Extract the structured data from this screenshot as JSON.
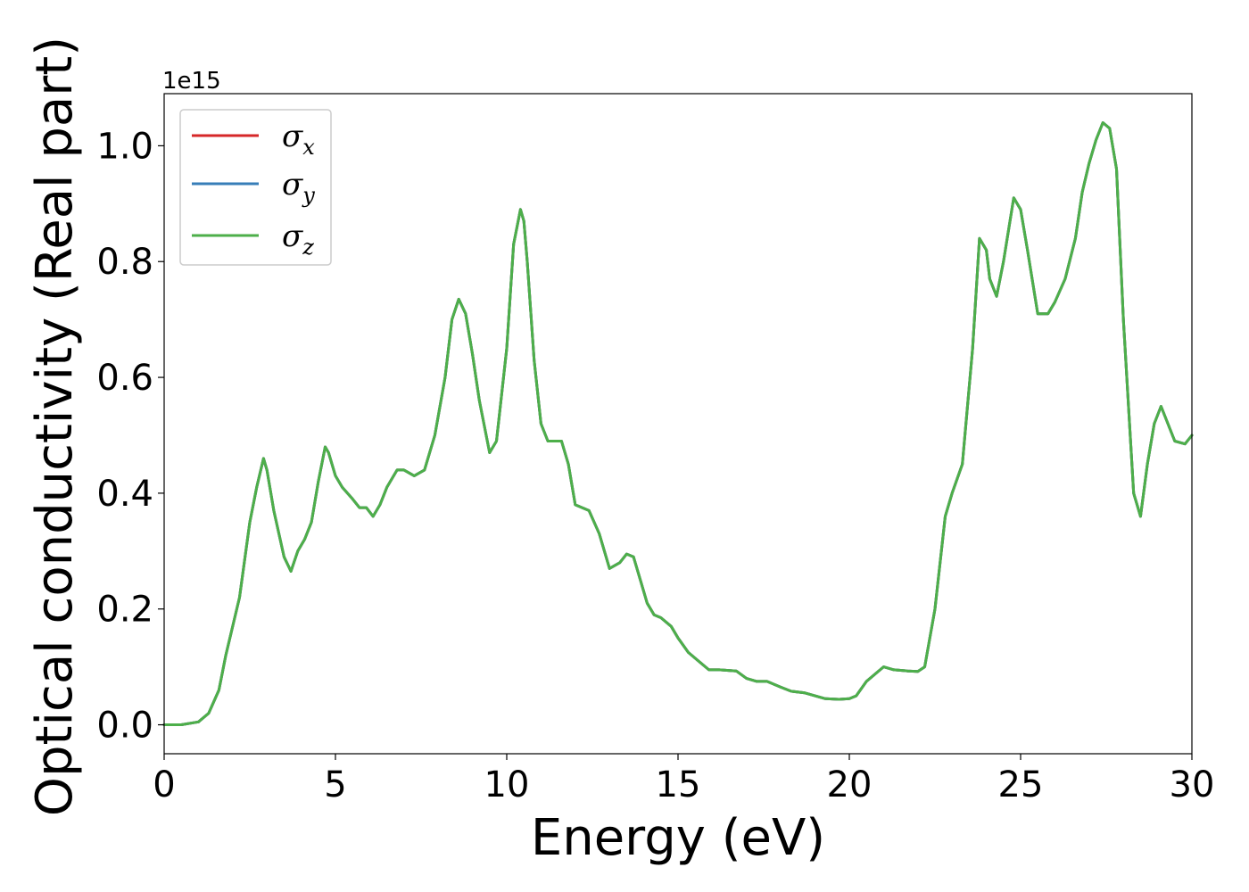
{
  "chart_data": {
    "type": "line",
    "xlabel": "Energy (eV)",
    "ylabel": "Optical conductivity (Real part)",
    "offset_text": "1e15",
    "xlim": [
      0,
      30
    ],
    "ylim": [
      -0.05,
      1.09
    ],
    "xticks": [
      0,
      5,
      10,
      15,
      20,
      25,
      30
    ],
    "yticks": [
      0.0,
      0.2,
      0.4,
      0.6,
      0.8,
      1.0
    ],
    "xtick_labels": [
      "0",
      "5",
      "10",
      "15",
      "20",
      "25",
      "30"
    ],
    "ytick_labels": [
      "0.0",
      "0.2",
      "0.4",
      "0.6",
      "0.8",
      "1.0"
    ],
    "grid": false,
    "legend_position": "top-left",
    "legend": [
      {
        "symbol": "σ",
        "sub": "x",
        "color": "#d62728"
      },
      {
        "symbol": "σ",
        "sub": "y",
        "color": "#377eb8"
      },
      {
        "symbol": "σ",
        "sub": "z",
        "color": "#4daf4a"
      }
    ],
    "series": [
      {
        "name": "σx",
        "color": "#d62728"
      },
      {
        "name": "σy",
        "color": "#377eb8"
      },
      {
        "name": "σz",
        "color": "#4daf4a"
      }
    ],
    "x": [
      0,
      0.5,
      1.0,
      1.3,
      1.6,
      1.8,
      2.0,
      2.2,
      2.5,
      2.7,
      2.9,
      3.0,
      3.2,
      3.5,
      3.7,
      3.9,
      4.1,
      4.3,
      4.5,
      4.7,
      4.8,
      5.0,
      5.2,
      5.5,
      5.7,
      5.9,
      6.1,
      6.3,
      6.5,
      6.8,
      7.0,
      7.3,
      7.6,
      7.9,
      8.2,
      8.4,
      8.6,
      8.8,
      9.0,
      9.2,
      9.5,
      9.7,
      10.0,
      10.2,
      10.4,
      10.5,
      10.6,
      10.8,
      11.0,
      11.2,
      11.4,
      11.6,
      11.8,
      12.0,
      12.2,
      12.4,
      12.7,
      13.0,
      13.3,
      13.5,
      13.7,
      13.9,
      14.1,
      14.3,
      14.5,
      14.8,
      15.0,
      15.3,
      15.6,
      15.9,
      16.2,
      16.7,
      17.0,
      17.3,
      17.6,
      17.8,
      18.0,
      18.3,
      18.7,
      19.0,
      19.3,
      19.7,
      20.0,
      20.2,
      20.5,
      20.8,
      21.0,
      21.3,
      21.7,
      22.0,
      22.2,
      22.5,
      22.8,
      23.0,
      23.3,
      23.6,
      23.8,
      24.0,
      24.1,
      24.3,
      24.5,
      24.8,
      25.0,
      25.2,
      25.5,
      25.8,
      26.0,
      26.3,
      26.6,
      26.8,
      27.0,
      27.2,
      27.4,
      27.6,
      27.8,
      28.0,
      28.3,
      28.5,
      28.7,
      28.9,
      29.1,
      29.3,
      29.5,
      29.8,
      30.0
    ],
    "y": [
      0.0,
      0.0,
      0.005,
      0.02,
      0.06,
      0.12,
      0.17,
      0.22,
      0.35,
      0.41,
      0.46,
      0.44,
      0.37,
      0.29,
      0.265,
      0.3,
      0.32,
      0.35,
      0.42,
      0.48,
      0.47,
      0.43,
      0.41,
      0.39,
      0.375,
      0.375,
      0.36,
      0.38,
      0.41,
      0.44,
      0.44,
      0.43,
      0.44,
      0.5,
      0.6,
      0.7,
      0.735,
      0.71,
      0.64,
      0.56,
      0.47,
      0.49,
      0.65,
      0.83,
      0.89,
      0.87,
      0.8,
      0.63,
      0.52,
      0.49,
      0.49,
      0.49,
      0.45,
      0.38,
      0.375,
      0.37,
      0.33,
      0.27,
      0.28,
      0.295,
      0.29,
      0.25,
      0.21,
      0.19,
      0.185,
      0.17,
      0.15,
      0.125,
      0.11,
      0.095,
      0.095,
      0.093,
      0.08,
      0.075,
      0.075,
      0.07,
      0.065,
      0.058,
      0.055,
      0.05,
      0.045,
      0.044,
      0.045,
      0.05,
      0.075,
      0.09,
      0.1,
      0.095,
      0.093,
      0.092,
      0.1,
      0.2,
      0.36,
      0.4,
      0.45,
      0.65,
      0.84,
      0.82,
      0.77,
      0.74,
      0.8,
      0.91,
      0.89,
      0.82,
      0.71,
      0.71,
      0.73,
      0.77,
      0.84,
      0.92,
      0.97,
      1.01,
      1.04,
      1.03,
      0.96,
      0.7,
      0.4,
      0.36,
      0.45,
      0.52,
      0.55,
      0.52,
      0.49,
      0.485,
      0.5
    ]
  }
}
